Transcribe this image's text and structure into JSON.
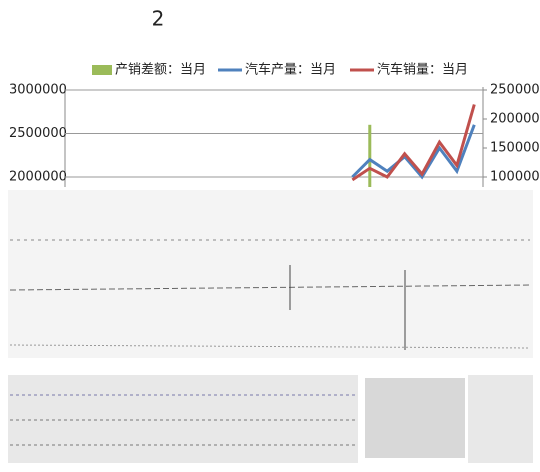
{
  "chart_data": {
    "type": "line",
    "title": "2",
    "categories": [
      null,
      null,
      null,
      null,
      null,
      null,
      null,
      null,
      null,
      null,
      null,
      null,
      null,
      null,
      null,
      null,
      null,
      null,
      null,
      null,
      null,
      null,
      null,
      null
    ],
    "series": [
      {
        "name": "产销差额：当月",
        "color": "#9bbb59",
        "kind": "bar",
        "values": [
          null,
          null,
          null,
          null,
          null,
          null,
          null,
          null,
          null,
          null,
          null,
          null,
          null,
          null,
          null,
          null,
          null,
          2600000,
          null,
          null,
          null,
          null,
          null,
          null
        ]
      },
      {
        "name": "汽车产量：当月",
        "color": "#4f81bd",
        "axis": "y2",
        "values": [
          null,
          null,
          null,
          null,
          null,
          null,
          null,
          null,
          null,
          null,
          null,
          null,
          null,
          null,
          null,
          null,
          100000,
          130000,
          110000,
          135000,
          100000,
          150000,
          110000,
          190000
        ]
      },
      {
        "name": "汽车销量：当月",
        "color": "#c0504d",
        "axis": "y2",
        "values": [
          null,
          null,
          null,
          null,
          null,
          null,
          null,
          null,
          null,
          null,
          null,
          null,
          null,
          null,
          null,
          null,
          95000,
          115000,
          100000,
          140000,
          105000,
          160000,
          120000,
          225000
        ]
      }
    ],
    "ylim": [
      2000000,
      3000000
    ],
    "yticks": [
      2000000,
      2500000,
      3000000
    ],
    "y2lim": [
      100000,
      250000
    ],
    "y2ticks": [
      100000,
      150000,
      200000,
      250000
    ],
    "grid": true
  }
}
